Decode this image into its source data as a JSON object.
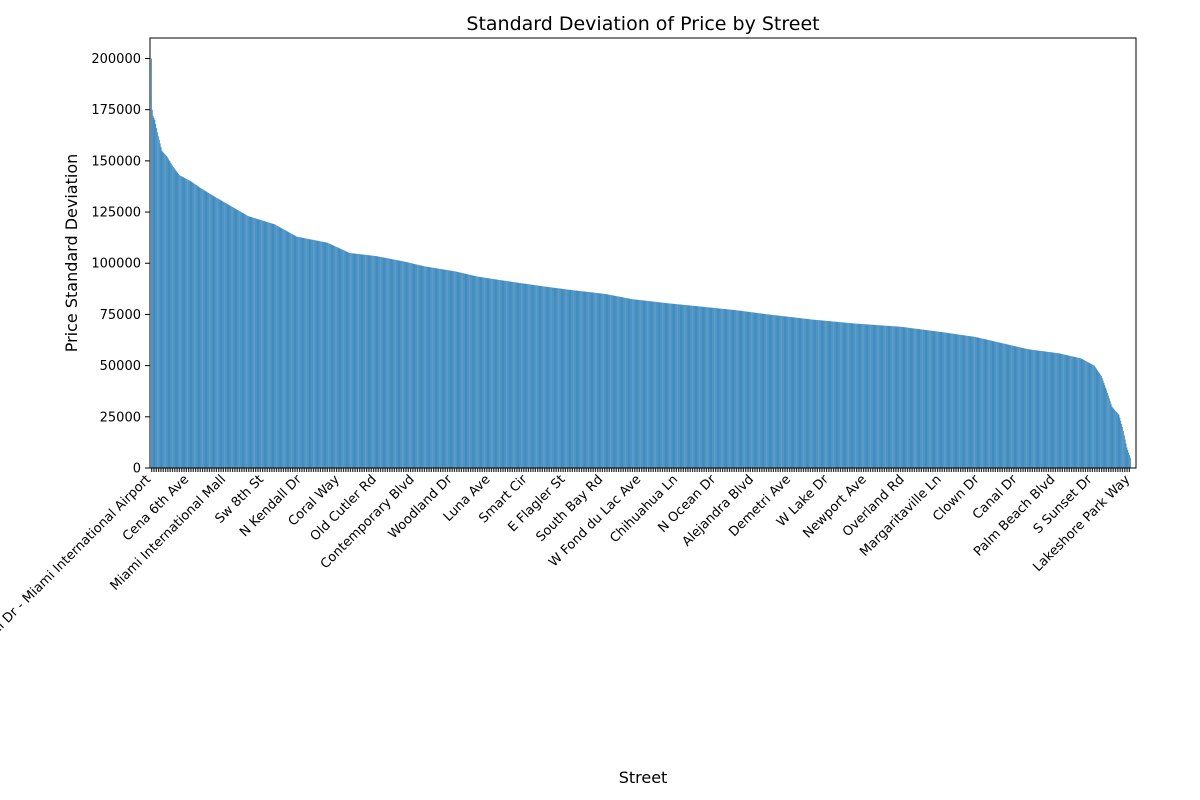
{
  "chart_data": {
    "type": "bar",
    "title": "Standard Deviation of Price by Street",
    "xlabel": "Street",
    "ylabel": "Price Standard Deviation",
    "ylim": [
      0,
      210000
    ],
    "yticks": [
      0,
      25000,
      50000,
      75000,
      100000,
      125000,
      150000,
      175000,
      200000
    ],
    "ytick_labels": [
      "0",
      "25000",
      "50000",
      "75000",
      "100000",
      "125000",
      "150000",
      "175000",
      "200000"
    ],
    "grid": false,
    "legend": "none",
    "bar_color": "#1f77b4",
    "value_profile": [
      [
        0,
        200000
      ],
      [
        1,
        175000
      ],
      [
        2,
        172000
      ],
      [
        4,
        170000
      ],
      [
        8,
        162000
      ],
      [
        12,
        155000
      ],
      [
        18,
        152000
      ],
      [
        25,
        147000
      ],
      [
        32,
        143000
      ],
      [
        45,
        140000
      ],
      [
        55,
        137000
      ],
      [
        70,
        133000
      ],
      [
        90,
        128000
      ],
      [
        110,
        123000
      ],
      [
        140,
        119000
      ],
      [
        165,
        113000
      ],
      [
        200,
        110000
      ],
      [
        225,
        105000
      ],
      [
        255,
        103500
      ],
      [
        285,
        101000
      ],
      [
        310,
        98500
      ],
      [
        345,
        96000
      ],
      [
        370,
        93500
      ],
      [
        400,
        91500
      ],
      [
        440,
        89000
      ],
      [
        475,
        87000
      ],
      [
        515,
        85000
      ],
      [
        545,
        82500
      ],
      [
        585,
        80500
      ],
      [
        620,
        79000
      ],
      [
        665,
        77000
      ],
      [
        700,
        75000
      ],
      [
        750,
        72500
      ],
      [
        800,
        70500
      ],
      [
        850,
        69000
      ],
      [
        895,
        66500
      ],
      [
        935,
        64000
      ],
      [
        965,
        61000
      ],
      [
        995,
        58000
      ],
      [
        1030,
        56000
      ],
      [
        1055,
        53500
      ],
      [
        1070,
        50000
      ],
      [
        1078,
        45000
      ],
      [
        1084,
        38000
      ],
      [
        1090,
        30000
      ],
      [
        1098,
        26000
      ],
      [
        1102,
        20000
      ],
      [
        1107,
        10000
      ],
      [
        1111,
        5000
      ]
    ],
    "bar_count": 1112,
    "labeled_categories": [
      "Nw Tamiami Canal Dr - Miami International Airport",
      "Cena 6th Ave",
      "Miami International Mall",
      "Sw 8th St",
      "N Kendall Dr",
      "Coral Way",
      "Old Cutler Rd",
      "Contemporary Blvd",
      "Woodland Dr",
      "Luna Ave",
      "Smart Cir",
      "E Flagler St",
      "South Bay Rd",
      "W Fond du Lac Ave",
      "Chihuahua Ln",
      "N Ocean Dr",
      "Alejandra Blvd",
      "Demetri Ave",
      "W Lake Dr",
      "Newport Ave",
      "Overland Rd",
      "Margaritaville Ln",
      "Clown Dr",
      "Canal Dr",
      "Palm Beach Blvd",
      "S Sunset Dr",
      "Lakeshore Park Way"
    ]
  }
}
